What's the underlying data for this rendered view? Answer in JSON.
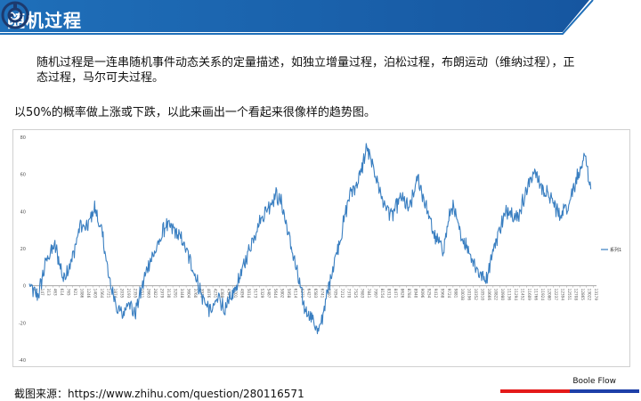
{
  "header": {
    "title": "随机过程",
    "logo_icon": "boole-logo-icon",
    "accent_color": "#1a62a8"
  },
  "intro": {
    "paragraph": "随机过程是一连串随机事件动态关系的定量描述，如独立增量过程，泊松过程，布朗运动（维纳过程），正态过程，马尔可夫过程。",
    "lead": "以50%的概率做上涨或下跌，以此来画出一个看起来很像样的趋势图。"
  },
  "chart_data": {
    "type": "line",
    "title": "",
    "xlabel": "",
    "ylabel": "",
    "ylim": [
      -40,
      80
    ],
    "yticks": [
      -40,
      -20,
      0,
      20,
      40,
      60,
      80
    ],
    "xtick_labels": [
      "1",
      "147",
      "313",
      "463",
      "614",
      "765",
      "921",
      "1086",
      "1246",
      "1403",
      "1564",
      "1721",
      "1874",
      "2035",
      "2193",
      "2355",
      "2511",
      "2663",
      "2822",
      "2979",
      "3130",
      "3291",
      "3448",
      "3604",
      "3760",
      "3918",
      "4076",
      "4231",
      "4388",
      "4543",
      "4701",
      "4856",
      "5014",
      "5173",
      "5329",
      "5487",
      "5644",
      "5802",
      "5958",
      "6114",
      "6271",
      "6427",
      "6583",
      "6741",
      "6897",
      "7054",
      "7212",
      "7370",
      "7525",
      "7683",
      "7841",
      "7997",
      "8154",
      "8313",
      "8471",
      "8626",
      "8784",
      "8940",
      "9096",
      "9254",
      "9412",
      "9568",
      "9724",
      "9881",
      "10038",
      "10196",
      "10352",
      "10510",
      "10666",
      "10822",
      "10980",
      "11136",
      "11294",
      "11452",
      "11609",
      "11766",
      "11924",
      "12080",
      "12237",
      "12394",
      "12551",
      "12708",
      "12865",
      "13022",
      "13179"
    ],
    "series": [
      {
        "name": "系列1",
        "color": "#3a7fc1",
        "anchors": [
          [
            0,
            0
          ],
          [
            0.015,
            -6
          ],
          [
            0.03,
            14
          ],
          [
            0.045,
            22
          ],
          [
            0.06,
            4
          ],
          [
            0.075,
            14
          ],
          [
            0.09,
            33
          ],
          [
            0.1,
            30
          ],
          [
            0.115,
            42
          ],
          [
            0.13,
            26
          ],
          [
            0.14,
            4
          ],
          [
            0.155,
            -12
          ],
          [
            0.165,
            -16
          ],
          [
            0.175,
            -7
          ],
          [
            0.185,
            -16
          ],
          [
            0.195,
            -5
          ],
          [
            0.21,
            12
          ],
          [
            0.225,
            20
          ],
          [
            0.24,
            33
          ],
          [
            0.255,
            30
          ],
          [
            0.27,
            24
          ],
          [
            0.28,
            16
          ],
          [
            0.29,
            8
          ],
          [
            0.305,
            -6
          ],
          [
            0.32,
            -14
          ],
          [
            0.335,
            -6
          ],
          [
            0.345,
            -14
          ],
          [
            0.36,
            -4
          ],
          [
            0.375,
            8
          ],
          [
            0.39,
            22
          ],
          [
            0.405,
            34
          ],
          [
            0.42,
            42
          ],
          [
            0.435,
            49
          ],
          [
            0.445,
            44
          ],
          [
            0.455,
            30
          ],
          [
            0.47,
            10
          ],
          [
            0.485,
            -12
          ],
          [
            0.5,
            -18
          ],
          [
            0.51,
            -26
          ],
          [
            0.52,
            -12
          ],
          [
            0.535,
            10
          ],
          [
            0.55,
            28
          ],
          [
            0.565,
            50
          ],
          [
            0.58,
            56
          ],
          [
            0.595,
            74
          ],
          [
            0.61,
            60
          ],
          [
            0.625,
            44
          ],
          [
            0.64,
            38
          ],
          [
            0.655,
            48
          ],
          [
            0.67,
            41
          ],
          [
            0.685,
            58
          ],
          [
            0.7,
            42
          ],
          [
            0.715,
            26
          ],
          [
            0.73,
            20
          ],
          [
            0.745,
            44
          ],
          [
            0.76,
            28
          ],
          [
            0.775,
            19
          ],
          [
            0.79,
            8
          ],
          [
            0.805,
            3
          ],
          [
            0.815,
            16
          ],
          [
            0.83,
            32
          ],
          [
            0.845,
            42
          ],
          [
            0.86,
            36
          ],
          [
            0.875,
            50
          ],
          [
            0.89,
            62
          ],
          [
            0.905,
            52
          ],
          [
            0.92,
            47
          ],
          [
            0.935,
            38
          ],
          [
            0.95,
            44
          ],
          [
            0.965,
            58
          ],
          [
            0.98,
            68
          ],
          [
            0.99,
            52
          ]
        ]
      }
    ],
    "legend_position": "right",
    "grid": false,
    "axis_color": "#999999",
    "line_color": "#3a7fc1"
  },
  "footer": {
    "source": "截图来源：https://www.zhihu.com/question/280116571",
    "brand": "Boole Flow",
    "bar_colors": [
      "#e41a1a",
      "#1e3fa8"
    ]
  }
}
